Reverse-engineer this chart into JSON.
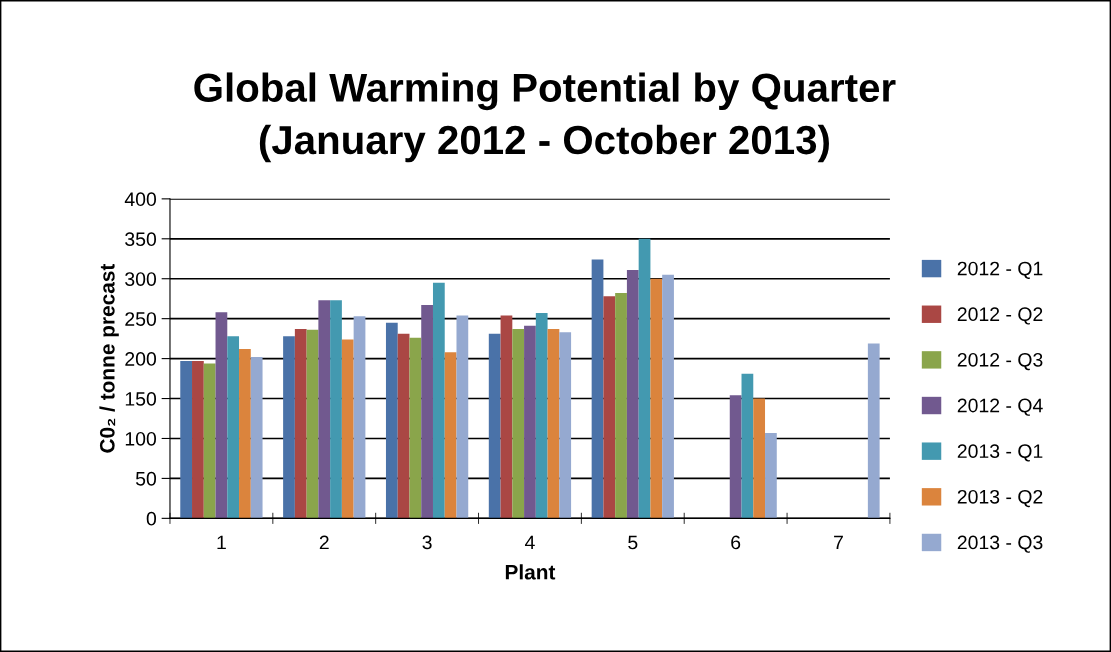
{
  "chart_data": {
    "type": "bar",
    "title": "Global Warming Potential by Quarter\n(January 2012 - October 2013)",
    "xlabel": "Plant",
    "ylabel": "C0₂ / tonne precast",
    "categories": [
      "1",
      "2",
      "3",
      "4",
      "5",
      "6",
      "7"
    ],
    "series": [
      {
        "name": "2012 - Q1",
        "color": "#4a72a8",
        "values": [
          197,
          228,
          245,
          231,
          324,
          null,
          null
        ]
      },
      {
        "name": "2012 - Q2",
        "color": "#aa4744",
        "values": [
          197,
          237,
          231,
          254,
          278,
          null,
          null
        ]
      },
      {
        "name": "2012 - Q3",
        "color": "#8aa54b",
        "values": [
          194,
          236,
          226,
          237,
          282,
          null,
          null
        ]
      },
      {
        "name": "2012 - Q4",
        "color": "#71598f",
        "values": [
          258,
          273,
          267,
          241,
          311,
          154,
          null
        ]
      },
      {
        "name": "2013 - Q1",
        "color": "#4399b0",
        "values": [
          228,
          273,
          295,
          257,
          350,
          181,
          null
        ]
      },
      {
        "name": "2013 - Q2",
        "color": "#db843d",
        "values": [
          212,
          224,
          208,
          237,
          300,
          150,
          null
        ]
      },
      {
        "name": "2013 - Q3",
        "color": "#95a9d0",
        "values": [
          202,
          253,
          254,
          233,
          305,
          107,
          219
        ]
      }
    ],
    "ylim": [
      0,
      400
    ],
    "yticks": [
      0,
      50,
      100,
      150,
      200,
      250,
      300,
      350,
      400
    ],
    "grid": "y",
    "legend": "right"
  }
}
